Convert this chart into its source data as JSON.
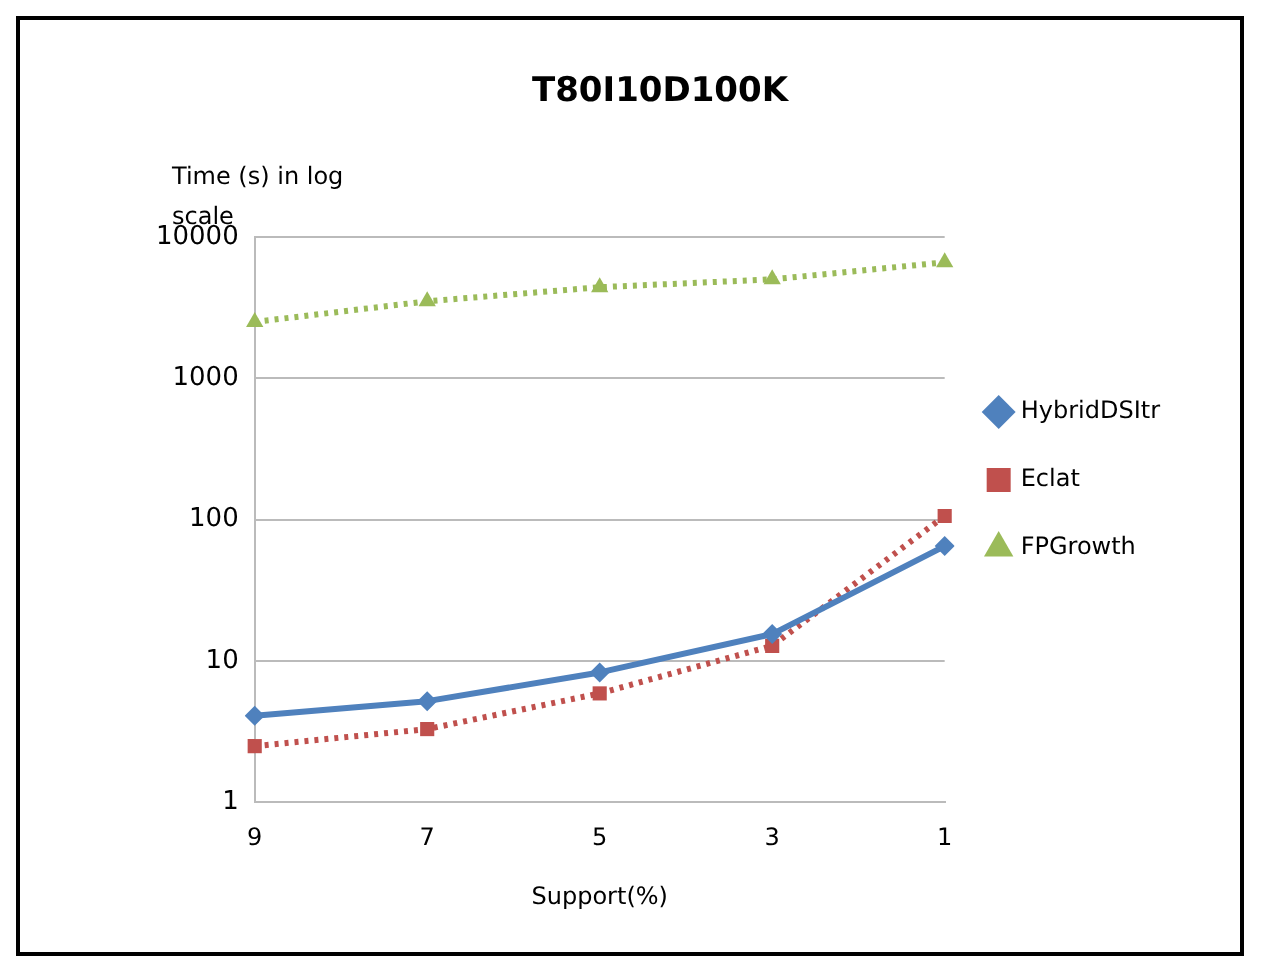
{
  "chart_data": {
    "type": "line",
    "title": "T80I10D100K",
    "xlabel": "Support(%)",
    "ylabel": "Time (s) in log scale",
    "categories": [
      "9",
      "7",
      "5",
      "3",
      "1"
    ],
    "series": [
      {
        "name": "HybridDSItr",
        "color": "#4f81bd",
        "values": [
          4.1,
          5.2,
          8.3,
          15.5,
          65
        ],
        "marker": "diamond",
        "line_style": "solid"
      },
      {
        "name": "Eclat",
        "color": "#c0504d",
        "values": [
          2.5,
          3.3,
          5.9,
          12.8,
          106
        ],
        "marker": "square",
        "line_style": "dotted"
      },
      {
        "name": "FPGrowth",
        "color": "#9bbb59",
        "values": [
          2500,
          3500,
          4400,
          5000,
          6600
        ],
        "marker": "triangle",
        "line_style": "dotted"
      }
    ],
    "log": "y",
    "ylim": [
      1,
      10000
    ],
    "yticks": [
      1,
      10,
      100,
      1000,
      10000
    ],
    "grid": "y",
    "legend": "right"
  }
}
